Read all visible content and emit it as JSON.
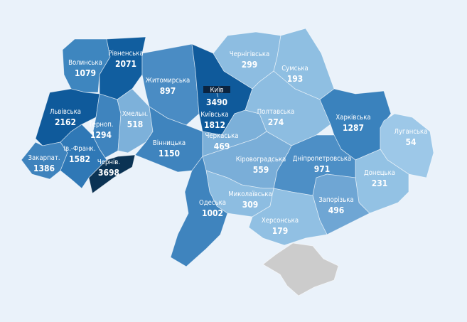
{
  "regions": [
    {
      "id": "volynska",
      "name": "Волинська",
      "value": "1079",
      "color": "#3e86bf"
    },
    {
      "id": "rivnenska",
      "name": "Рівненська",
      "value": "2071",
      "color": "#115e9f"
    },
    {
      "id": "zhytomyrska",
      "name": "Житомирська",
      "value": "897",
      "color": "#4a8cc4"
    },
    {
      "id": "kyivska",
      "name": "Київська",
      "value": "1812",
      "color": "#0f5a9b"
    },
    {
      "id": "chernihivska",
      "name": "Чернігівська",
      "value": "299",
      "color": "#8dbde1"
    },
    {
      "id": "sumska",
      "name": "Сумська",
      "value": "193",
      "color": "#8fbfe2"
    },
    {
      "id": "lvivska",
      "name": "Львівська",
      "value": "2162",
      "color": "#0f5a9b"
    },
    {
      "id": "ternopilska",
      "name": "Терноп.",
      "value": "1294",
      "color": "#3f84be"
    },
    {
      "id": "khmelnytska",
      "name": "Хмельн.",
      "value": "518",
      "color": "#7db1da"
    },
    {
      "id": "vinnytska",
      "name": "Вінницька",
      "value": "1150",
      "color": "#3f84be"
    },
    {
      "id": "zakarpatska",
      "name": "Закарпат.",
      "value": "1386",
      "color": "#3e83bd"
    },
    {
      "id": "ivano-frankivska",
      "name": "Ів.-Франк.",
      "value": "1582",
      "color": "#2f78b6"
    },
    {
      "id": "chernivetska",
      "name": "Чернів.",
      "value": "3698",
      "color": "#0b3354"
    },
    {
      "id": "cherkaska",
      "name": "Черкаська",
      "value": "469",
      "color": "#7cb0d9"
    },
    {
      "id": "poltavska",
      "name": "Полтавська",
      "value": "274",
      "color": "#8dbde1"
    },
    {
      "id": "kharkivska",
      "name": "Харківська",
      "value": "1287",
      "color": "#3a82bd"
    },
    {
      "id": "luhanska",
      "name": "Луганська",
      "value": "54",
      "color": "#9dc8e8"
    },
    {
      "id": "donetska",
      "name": "Донецька",
      "value": "231",
      "color": "#93c2e4"
    },
    {
      "id": "dnipropetrovska",
      "name": "Дніпропетровська",
      "value": "971",
      "color": "#4d8fc6"
    },
    {
      "id": "kirovohradska",
      "name": "Кіровоградська",
      "value": "559",
      "color": "#7aaed8"
    },
    {
      "id": "zaporizka",
      "name": "Запорізька",
      "value": "496",
      "color": "#6fa6d4"
    },
    {
      "id": "mykolaivska",
      "name": "Миколаївська",
      "value": "309",
      "color": "#8dbde1"
    },
    {
      "id": "khersonska",
      "name": "Херсонська",
      "value": "179",
      "color": "#91c0e3"
    },
    {
      "id": "odeska",
      "name": "Одеська",
      "value": "1002",
      "color": "#3f84be"
    }
  ],
  "kyiv_city": {
    "name": "Київ",
    "value": "3490",
    "label_bg": "#0b2440"
  },
  "crimea_color": "#cccccc"
}
